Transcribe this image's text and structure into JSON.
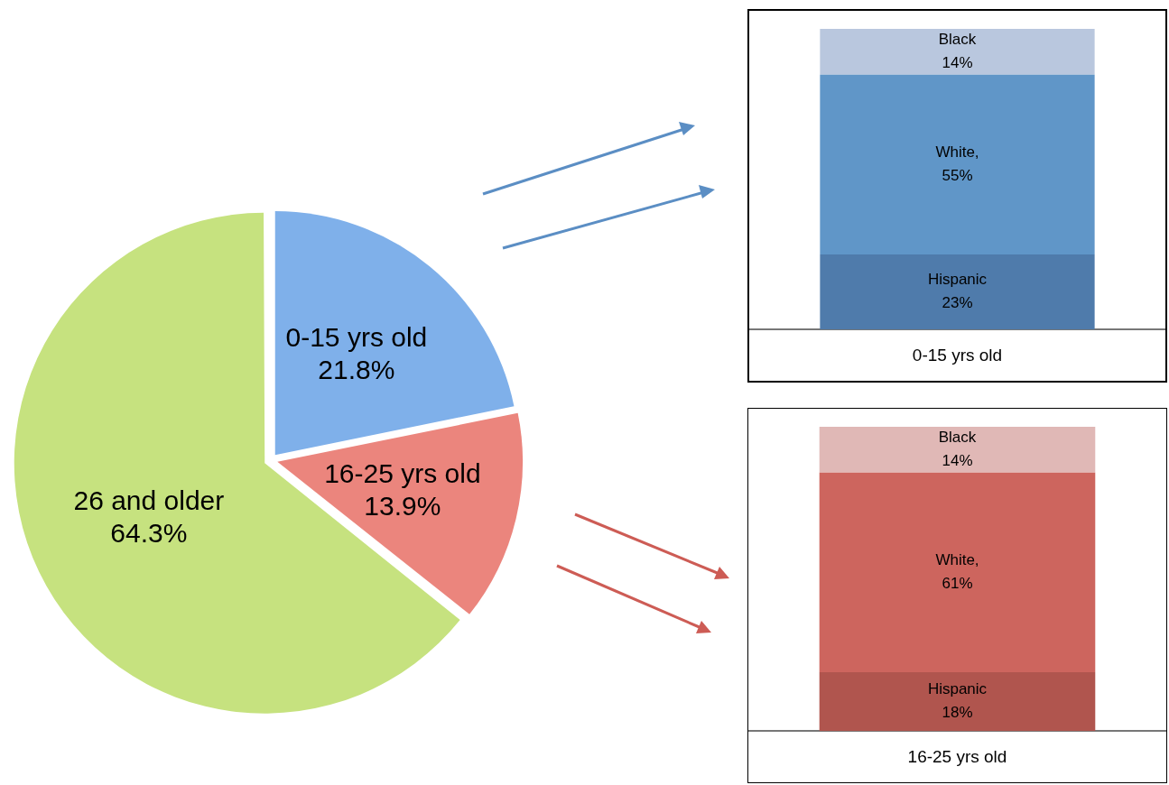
{
  "chart_data": [
    {
      "type": "pie",
      "categories": [
        "0-15 yrs old",
        "16-25 yrs old",
        "26 and older"
      ],
      "values": [
        21.8,
        13.9,
        64.3
      ],
      "colors": [
        "#7fb0ea",
        "#eb857d",
        "#c6e27f"
      ],
      "value_labels": [
        "21.8%",
        "13.9%",
        "64.3%"
      ],
      "legend": false
    },
    {
      "type": "bar",
      "stacked": true,
      "categories": [
        null
      ],
      "xlabel": "0-15 yrs old",
      "tick_labels": false,
      "legend": false,
      "grid": false,
      "series": [
        {
          "name": "Hispanic",
          "color": "#4f7bab",
          "values": [
            23
          ],
          "value_labels": [
            "23%"
          ]
        },
        {
          "name": "White,",
          "color": "#6096c8",
          "values": [
            55
          ],
          "value_labels": [
            "55%"
          ]
        },
        {
          "name": "Black",
          "color": "#b9c7de",
          "values": [
            14
          ],
          "value_labels": [
            "14%"
          ]
        }
      ]
    },
    {
      "type": "bar",
      "stacked": true,
      "categories": [
        null
      ],
      "xlabel": "16-25 yrs old",
      "tick_labels": false,
      "legend": false,
      "grid": false,
      "series": [
        {
          "name": "Hispanic",
          "color": "#b0554e",
          "values": [
            18
          ],
          "value_labels": [
            "18%"
          ]
        },
        {
          "name": "White,",
          "color": "#cd655e",
          "values": [
            61
          ],
          "value_labels": [
            "61%"
          ]
        },
        {
          "name": "Black",
          "color": "#e0b8b6",
          "values": [
            14
          ],
          "value_labels": [
            "14%"
          ]
        }
      ]
    }
  ]
}
